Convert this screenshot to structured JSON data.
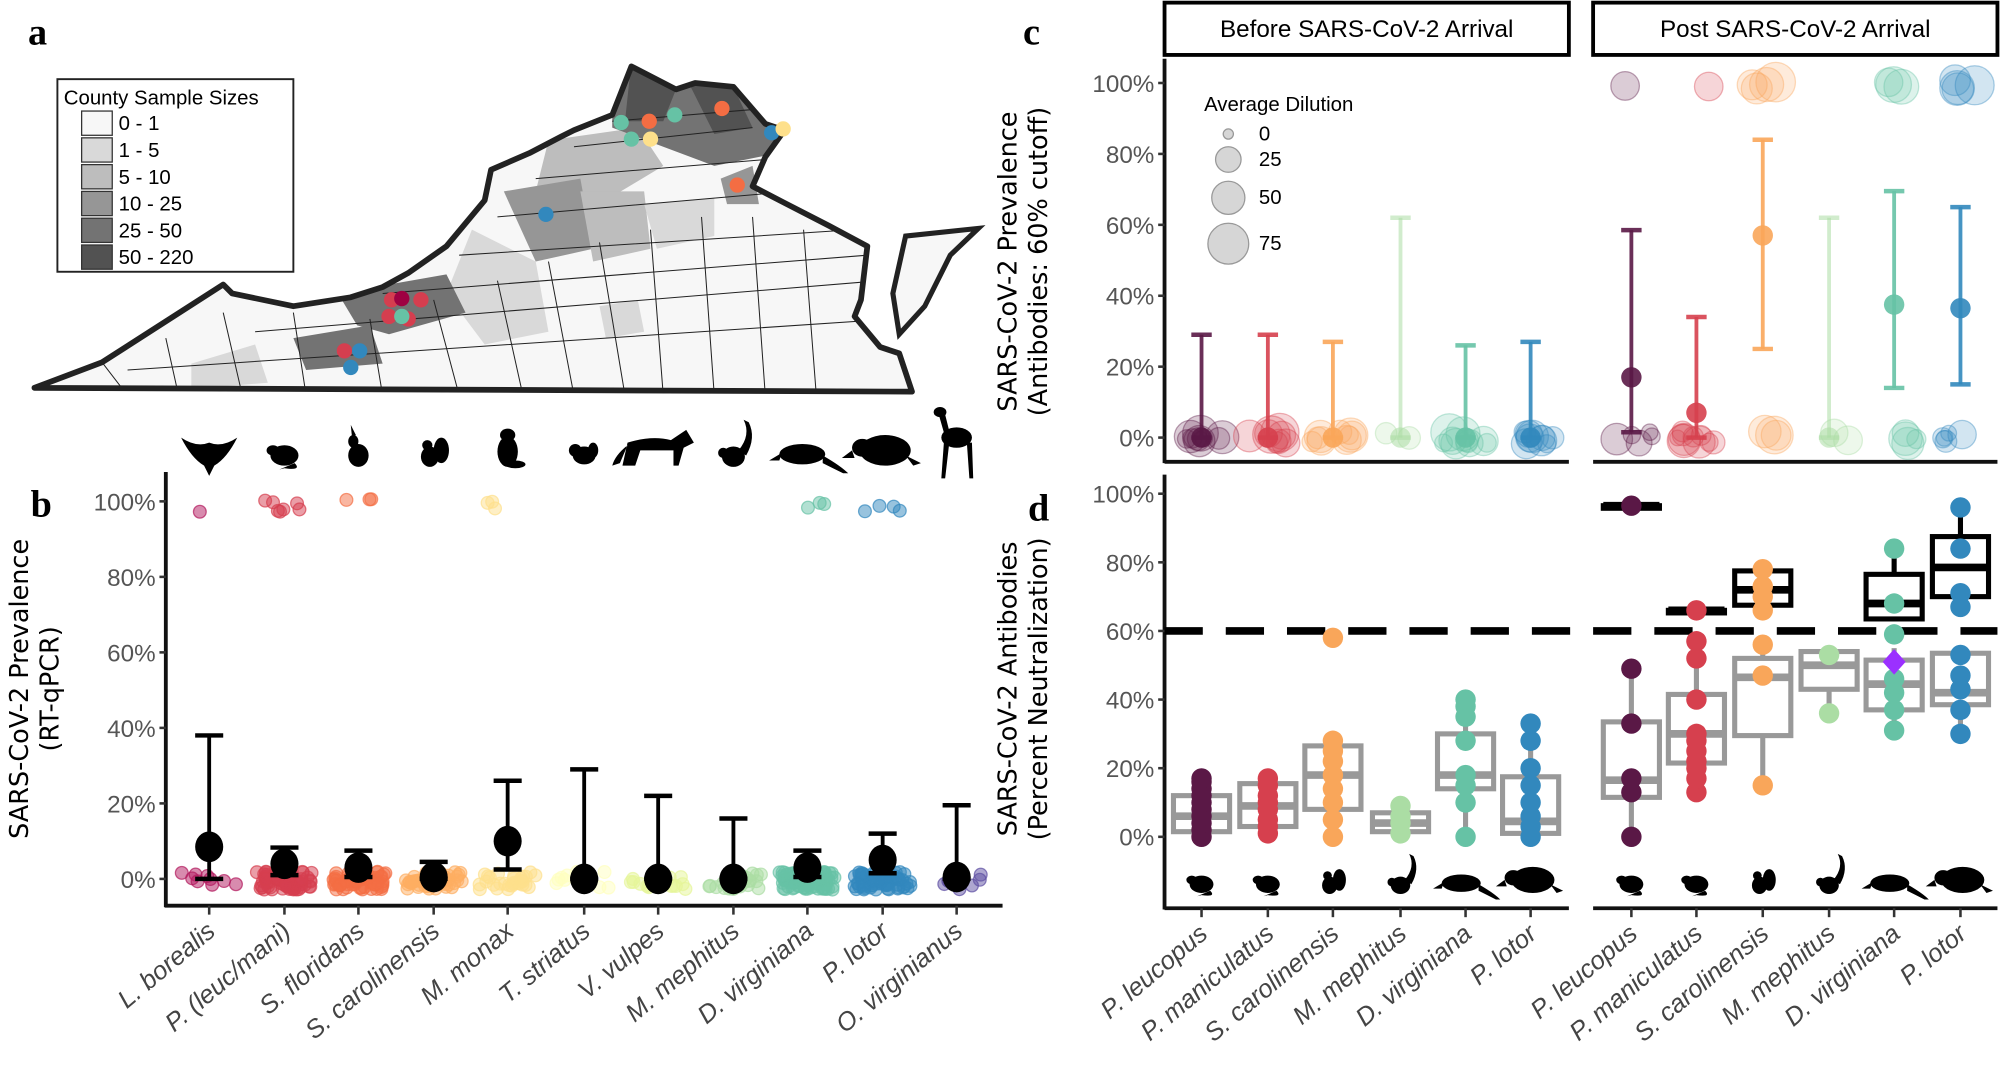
{
  "panel_labels": {
    "a": "a",
    "b": "b",
    "c": "c",
    "d": "d"
  },
  "map": {
    "legend_title": "County Sample Sizes",
    "legend_bins": [
      {
        "label": "0 - 1",
        "color": "#f7f7f7"
      },
      {
        "label": "1 - 5",
        "color": "#d9d9d9"
      },
      {
        "label": "5 - 10",
        "color": "#bdbdbd"
      },
      {
        "label": "10 - 25",
        "color": "#969696"
      },
      {
        "label": "25 - 50",
        "color": "#737373"
      },
      {
        "label": "50 - 220",
        "color": "#525252"
      }
    ]
  },
  "chart_data": [
    {
      "panel": "b",
      "type": "scatter",
      "ylabel": [
        "SARS-CoV-2 Prevalence",
        "(RT-qPCR)"
      ],
      "ylim": [
        0,
        100
      ],
      "yticks": [
        "0%",
        "20%",
        "40%",
        "60%",
        "80%",
        "100%"
      ],
      "grid": false,
      "categories": [
        "L. borealis",
        "P. (leuc/mani)",
        "S. floridans",
        "S. carolinensis",
        "M. monax",
        "T. striatus",
        "V. vulpes",
        "M. mephitus",
        "D. virginiana",
        "P. lotor",
        "O. virginianus"
      ],
      "silhouettes": [
        "bat-icon",
        "mouse-icon",
        "rabbit-icon",
        "squirrel-icon",
        "groundhog-icon",
        "chipmunk-icon",
        "fox-icon",
        "skunk-icon",
        "opossum-icon",
        "raccoon-icon",
        "deer-icon"
      ],
      "colors": [
        "#b2185d",
        "#d53e4f",
        "#f46d43",
        "#fdae61",
        "#fee08b",
        "#ffffbf",
        "#e6f598",
        "#abdda4",
        "#66c2a5",
        "#3288bd",
        "#5e4fa2"
      ],
      "mean": [
        8.5,
        4,
        3,
        0.5,
        10,
        0,
        0,
        0,
        3,
        5,
        0.5
      ],
      "ci_lower": [
        0,
        1,
        0.5,
        0,
        2.5,
        0,
        0,
        0,
        0.5,
        1.5,
        0
      ],
      "ci_upper": [
        38,
        8.3,
        7.5,
        4.5,
        26,
        29,
        22,
        16,
        7.5,
        12,
        19.5
      ],
      "positives": [
        1,
        7,
        3,
        0,
        3,
        0,
        0,
        0,
        3,
        4,
        0
      ],
      "negatives": [
        9,
        70,
        60,
        45,
        30,
        12,
        18,
        25,
        70,
        70,
        10
      ]
    },
    {
      "panel": "c",
      "type": "scatter",
      "ylabel": [
        "SARS-CoV-2 Prevalence",
        "(Antibodies: 60% cutoff)"
      ],
      "ylim": [
        0,
        100
      ],
      "yticks": [
        "0%",
        "20%",
        "40%",
        "60%",
        "80%",
        "100%"
      ],
      "facets": [
        "Before SARS-CoV-2 Arrival",
        "Post SARS-CoV-2 Arrival"
      ],
      "categories": [
        "P. leucopus",
        "P. maniculatus",
        "S. carolinensis",
        "M. mephitus",
        "D. virginiana",
        "P. lotor"
      ],
      "colors": [
        "#5a1846",
        "#d6404e",
        "#f9a65a",
        "#abdda4",
        "#66c2a5",
        "#3288bd"
      ],
      "size_legend": {
        "title": "Average Dilution",
        "values": [
          "0",
          "25",
          "50",
          "75"
        ]
      },
      "series": [
        {
          "facet": "Before SARS-CoV-2 Arrival",
          "mean": [
            0,
            0,
            0,
            0,
            0,
            0
          ],
          "ci_lower": [
            0,
            0,
            0,
            0,
            0,
            0
          ],
          "ci_upper": [
            29,
            29,
            27,
            62,
            26,
            27
          ],
          "positives": [
            0,
            0,
            0,
            0,
            0,
            0
          ],
          "negatives": [
            10,
            8,
            9,
            2,
            10,
            9
          ]
        },
        {
          "facet": "Post SARS-CoV-2 Arrival",
          "mean": [
            17,
            7,
            57,
            0,
            37.5,
            36.5
          ],
          "ci_lower": [
            1.5,
            0,
            25,
            0,
            14,
            15
          ],
          "ci_upper": [
            58.5,
            34,
            84,
            62,
            69.5,
            65
          ],
          "positives": [
            1,
            1,
            4,
            0,
            3,
            4
          ],
          "negatives": [
            5,
            10,
            3,
            2,
            4,
            5
          ]
        }
      ]
    },
    {
      "panel": "d",
      "type": "box",
      "ylabel": [
        "SARS-CoV-2 Antibodies",
        "(Percent Neutralization)"
      ],
      "ylim": [
        0,
        100
      ],
      "yticks": [
        "0%",
        "20%",
        "40%",
        "60%",
        "80%",
        "100%"
      ],
      "threshold": 60,
      "categories": [
        "P. leucopus",
        "P. maniculatus",
        "S. carolinensis",
        "M. mephitus",
        "D. virginiana",
        "P. lotor"
      ],
      "silhouettes": [
        "mouse-icon",
        "mouse-icon",
        "squirrel-icon",
        "skunk-icon",
        "opossum-icon",
        "raccoon-icon"
      ],
      "colors": [
        "#5a1846",
        "#d6404e",
        "#f9a65a",
        "#abdda4",
        "#66c2a5",
        "#3288bd"
      ],
      "highlight_color": "#9b30ff",
      "facets": [
        {
          "name": "Before SARS-CoV-2 Arrival",
          "points": [
            [
              0,
              2,
              4,
              6,
              8,
              10,
              12,
              14,
              16,
              17
            ],
            [
              1,
              3,
              5,
              8,
              10,
              12,
              15,
              17
            ],
            [
              0,
              5,
              10,
              14,
              18,
              22,
              25,
              28,
              58
            ],
            [
              1,
              4,
              6,
              9
            ],
            [
              0,
              10,
              15,
              18,
              28,
              35,
              38,
              40
            ],
            [
              0,
              3,
              6,
              10,
              15,
              20,
              28,
              33
            ]
          ],
          "boxes_below": [
            [
              0,
              1.5,
              6,
              12,
              17
            ],
            [
              1,
              3,
              9,
              15.5,
              17
            ],
            [
              0,
              8,
              18,
              26.5,
              30
            ],
            [
              1,
              1.5,
              4,
              7,
              9
            ],
            [
              0,
              14,
              18,
              30,
              40
            ],
            [
              0,
              1,
              4.5,
              17.5,
              34
            ]
          ],
          "boxes_above": [
            null,
            null,
            null,
            null,
            null,
            null
          ]
        },
        {
          "name": "Post SARS-CoV-2 Arrival",
          "points": [
            [
              0,
              13,
              17,
              33,
              49,
              96.5
            ],
            [
              13,
              17,
              20,
              22,
              25,
              28,
              30,
              40,
              52,
              57,
              66
            ],
            [
              15,
              47,
              56,
              66,
              70,
              73,
              78
            ],
            [
              36,
              53
            ],
            [
              31,
              37,
              42,
              46,
              59,
              68,
              84
            ],
            [
              30,
              37,
              43,
              47,
              53,
              67,
              71,
              84,
              96
            ]
          ],
          "boxes_below": [
            [
              0,
              11.5,
              16.5,
              33.5,
              49
            ],
            [
              13,
              21.5,
              30,
              41.5,
              57
            ],
            [
              15,
              29.5,
              46.5,
              52,
              57
            ],
            [
              35,
              43,
              50,
              54,
              54
            ],
            [
              31,
              37,
              44.5,
              51.5,
              55
            ],
            [
              30,
              38.5,
              42,
              53.5,
              54
            ]
          ],
          "boxes_above": [
            [
              96.5,
              96.5,
              96.5,
              96.5,
              96.5
            ],
            [
              66,
              66,
              66,
              66,
              66
            ],
            [
              67,
              67.5,
              72,
              77.5,
              78
            ],
            null,
            [
              63.5,
              63.5,
              68,
              76.5,
              83.5
            ],
            [
              70,
              70,
              78.5,
              87.5,
              96
            ]
          ],
          "highlight": {
            "category": "D. virginiana",
            "value": 51
          }
        }
      ]
    }
  ]
}
